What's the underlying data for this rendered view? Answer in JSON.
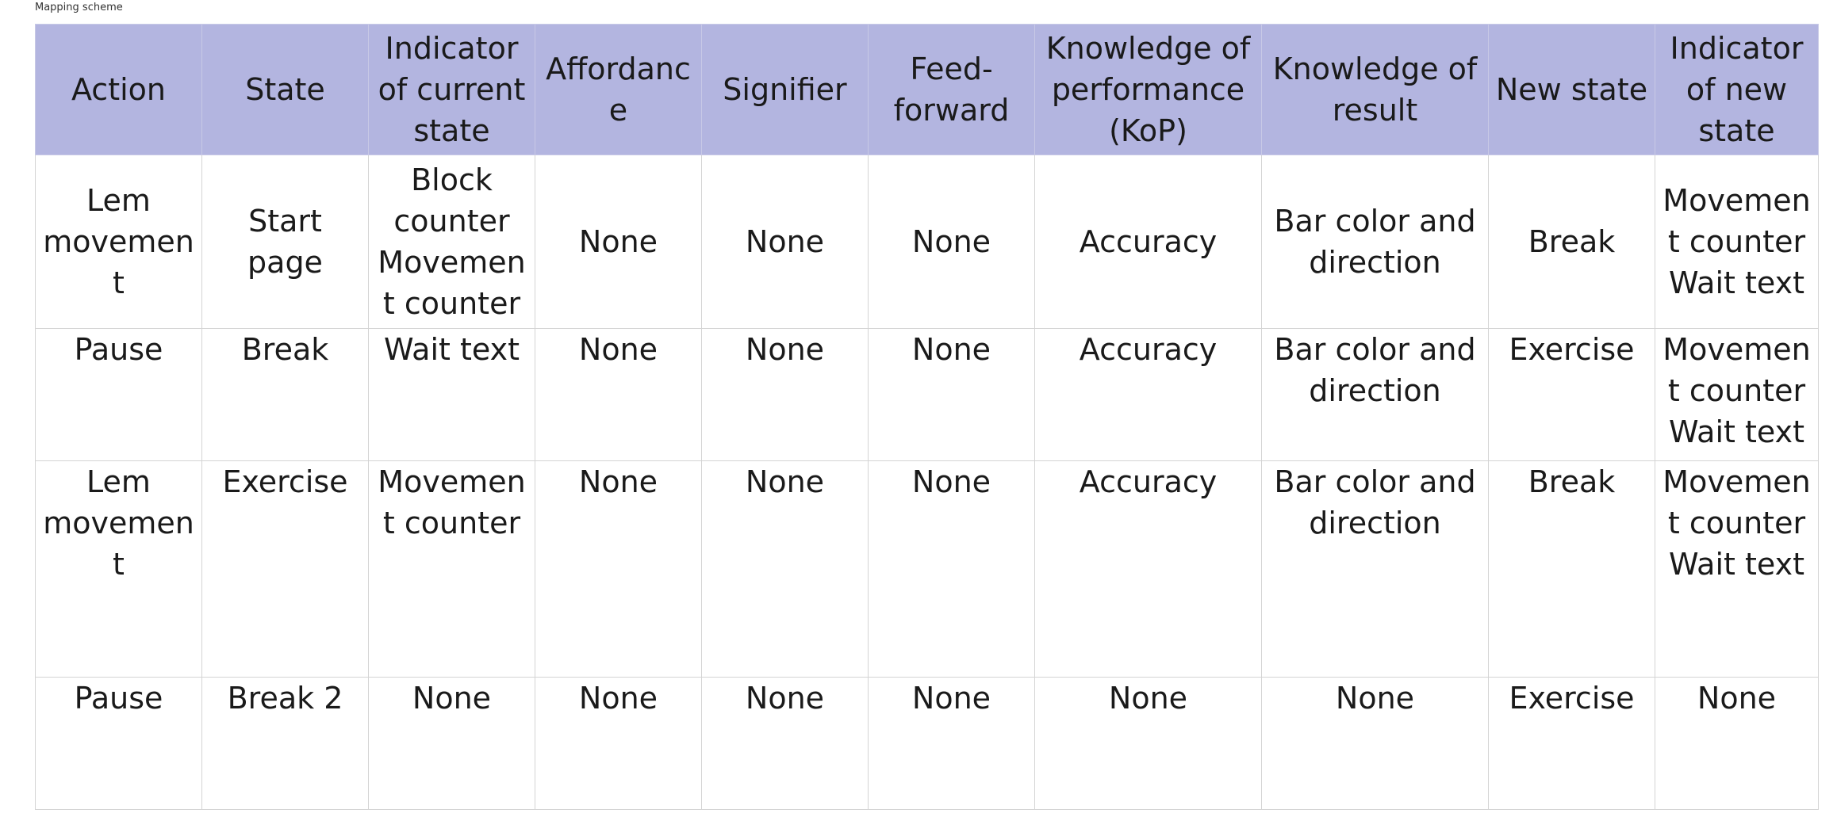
{
  "caption": "Mapping scheme",
  "table": {
    "headers": [
      "Action",
      "State",
      "Indicator of current state",
      "Affordance",
      "Signifier",
      "Feed-\nforward",
      "Knowledge of performance (KoP)",
      "Knowledge of result",
      "New state",
      "Indicator of new state"
    ],
    "rows": [
      [
        "Lem movement",
        "Start page",
        "Block counter Movement counter",
        "None",
        "None",
        "None",
        "Accuracy",
        "Bar color and direction",
        "Break",
        "Movement counter Wait text"
      ],
      [
        "Pause",
        "Break",
        "Wait text",
        "None",
        "None",
        "None",
        "Accuracy",
        "Bar color and direction",
        "Exercise",
        "Movement counter Wait text"
      ],
      [
        "Lem movement",
        "Exercise",
        "Movement counter",
        "None",
        "None",
        "None",
        "Accuracy",
        "Bar color and direction",
        "Break",
        "Movement counter Wait text"
      ],
      [
        "Pause",
        "Break 2",
        "None",
        "None",
        "None",
        "None",
        "None",
        "None",
        "Exercise",
        "None"
      ]
    ]
  },
  "colors": {
    "header_background": "#b3b5e0",
    "border": "#d4d4d4"
  }
}
